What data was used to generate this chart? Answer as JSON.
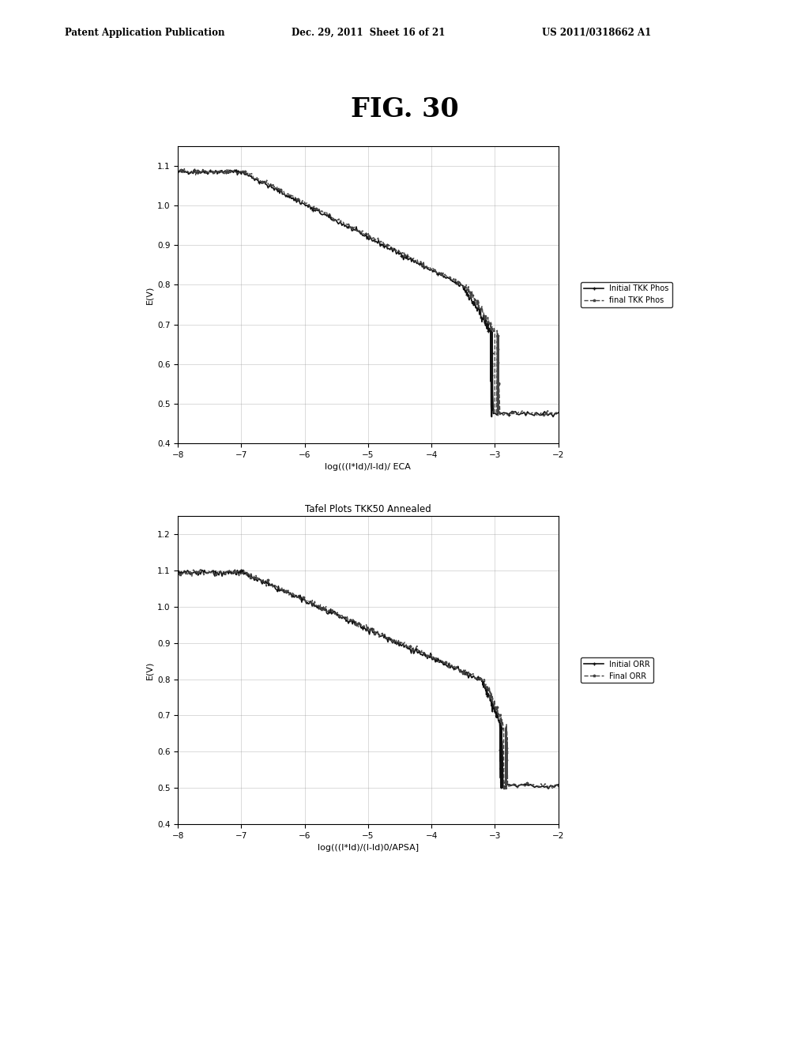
{
  "fig_title": "FIG. 30",
  "header_left": "Patent Application Publication",
  "header_center": "Dec. 29, 2011  Sheet 16 of 21",
  "header_right": "US 2011/0318662 A1",
  "plot1": {
    "ylabel": "E(V)",
    "xlabel": "log(((I*ld)/I-ld)/ ECA",
    "xlim": [
      -8,
      -2
    ],
    "ylim": [
      0.4,
      1.15
    ],
    "yticks": [
      0.4,
      0.5,
      0.6,
      0.7,
      0.8,
      0.9,
      1.0,
      1.1
    ],
    "xticks": [
      -8,
      -7,
      -6,
      -5,
      -4,
      -3,
      -2
    ],
    "legend1": "Initial TKK Phos",
    "legend2": "final TKK Phos"
  },
  "plot2": {
    "title": "Tafel Plots TKK50 Annealed",
    "ylabel": "E(V)",
    "xlabel": "log(((I*ld)/(I-ld)0/APSA]",
    "xlim": [
      -8,
      -2
    ],
    "ylim": [
      0.4,
      1.25
    ],
    "yticks": [
      0.4,
      0.5,
      0.6,
      0.7,
      0.8,
      0.9,
      1.0,
      1.1,
      1.2
    ],
    "xticks": [
      -8,
      -7,
      -6,
      -5,
      -4,
      -3,
      -2
    ],
    "legend1": "Initial ORR",
    "legend2": "Final ORR"
  },
  "background_color": "#ffffff",
  "line_color1": "#111111",
  "line_color2": "#444444"
}
